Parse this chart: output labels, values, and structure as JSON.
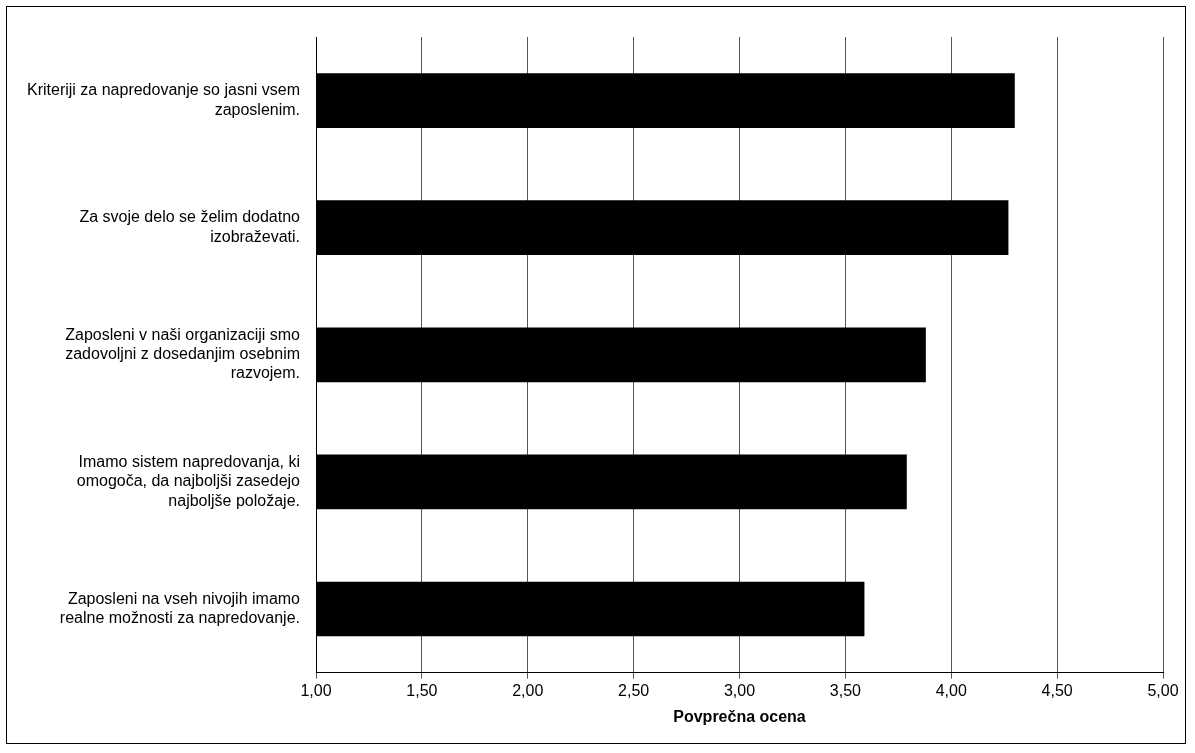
{
  "chart_data": {
    "type": "bar",
    "orientation": "horizontal",
    "xlabel": "Povprečna ocena",
    "categories": [
      "Kriteriji za napredovanje so jasni vsem zaposlenim.",
      "Za svoje delo se želim dodatno izobraževati.",
      "Zaposleni v naši organizaciji smo zadovoljni z dosedanjim osebnim razvojem.",
      "Imamo sistem napredovanja, ki omogoča, da najboljši zasedejo najboljše položaje.",
      "Zaposleni na vseh nivojih imamo realne možnosti za napredovanje."
    ],
    "values": [
      4.3,
      4.27,
      3.88,
      3.79,
      3.59
    ],
    "color": "#000000",
    "xlim": [
      1,
      5
    ],
    "xticks": [
      {
        "value": 1,
        "label": "1,00"
      },
      {
        "value": 1.5,
        "label": "1,50"
      },
      {
        "value": 2,
        "label": "2,00"
      },
      {
        "value": 2.5,
        "label": "2,50"
      },
      {
        "value": 3,
        "label": "3,00"
      },
      {
        "value": 3.5,
        "label": "3,50"
      },
      {
        "value": 4,
        "label": "4,00"
      },
      {
        "value": 4.5,
        "label": "4,50"
      },
      {
        "value": 5,
        "label": "5,00"
      }
    ],
    "grid": "x",
    "legend": false
  }
}
